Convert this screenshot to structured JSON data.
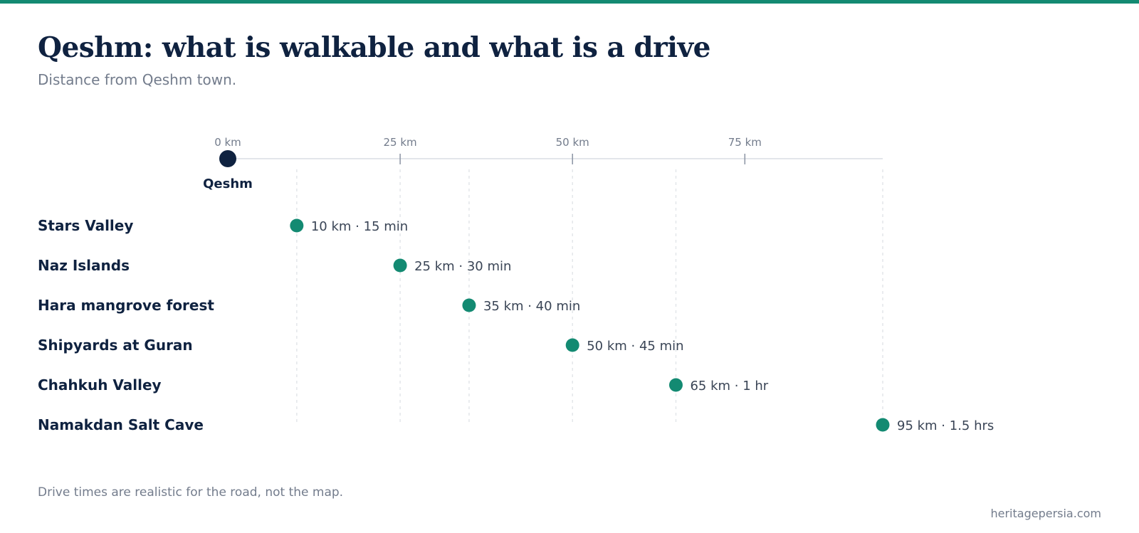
{
  "header": {
    "title": "Qeshm: what is walkable and what is a drive",
    "subtitle": "Distance from Qeshm town."
  },
  "colors": {
    "accent": "#138a72",
    "origin": "#0f2240",
    "text_dark": "#0f2240",
    "text_muted": "#737c8c",
    "axis": "#e3e6ea"
  },
  "chart_data": {
    "type": "scatter",
    "origin_label": "Qeshm",
    "x_unit": "km",
    "xlim": [
      0,
      95
    ],
    "ticks": [
      {
        "value": 0,
        "label": "0 km"
      },
      {
        "value": 25,
        "label": "25 km"
      },
      {
        "value": 50,
        "label": "50 km"
      },
      {
        "value": 75,
        "label": "75 km"
      }
    ],
    "points": [
      {
        "name": "Stars Valley",
        "km": 10,
        "label": "10 km · 15 min"
      },
      {
        "name": "Naz Islands",
        "km": 25,
        "label": "25 km · 30 min"
      },
      {
        "name": "Hara mangrove forest",
        "km": 35,
        "label": "35 km · 40 min"
      },
      {
        "name": "Shipyards at Guran",
        "km": 50,
        "label": "50 km · 45 min"
      },
      {
        "name": "Chahkuh Valley",
        "km": 65,
        "label": "65 km · 1 hr"
      },
      {
        "name": "Namakdan Salt Cave",
        "km": 95,
        "label": "95 km · 1.5 hrs"
      }
    ]
  },
  "footer": {
    "note": "Drive times are realistic for the road, not the map.",
    "source": "heritagepersia.com"
  }
}
